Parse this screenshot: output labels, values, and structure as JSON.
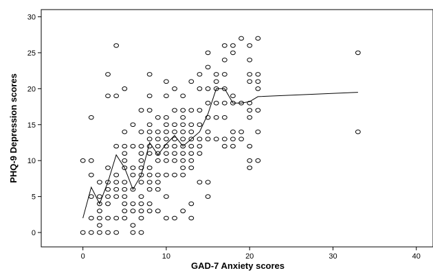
{
  "chart_data": {
    "type": "scatter",
    "title": "",
    "xlabel": "GAD-7 Anxiety scores",
    "ylabel": "PHQ-9 Depression scores",
    "xlim": [
      -5,
      42
    ],
    "ylim": [
      -2,
      31
    ],
    "x_ticks": [
      0,
      10,
      20,
      30,
      40
    ],
    "y_ticks": [
      0,
      5,
      10,
      15,
      20,
      25,
      30
    ],
    "x_tick_labels": [
      "0",
      "10",
      "20",
      "30",
      "40"
    ],
    "y_tick_labels": [
      "0",
      "5",
      "10",
      "15",
      "20",
      "25",
      "30"
    ],
    "grid": false,
    "legend": "none",
    "marker_style": "open-circle",
    "colors": {
      "marker": "#000000",
      "line": "#000000",
      "axes": "#000000",
      "background": "#ffffff"
    },
    "points": [
      [
        0,
        0
      ],
      [
        0,
        10
      ],
      [
        1,
        16
      ],
      [
        1,
        10
      ],
      [
        1,
        8
      ],
      [
        1,
        5
      ],
      [
        1,
        2
      ],
      [
        1,
        0
      ],
      [
        2,
        7
      ],
      [
        2,
        5
      ],
      [
        2,
        4
      ],
      [
        2,
        3
      ],
      [
        2,
        2
      ],
      [
        2,
        1
      ],
      [
        2,
        0
      ],
      [
        3,
        22
      ],
      [
        3,
        19
      ],
      [
        3,
        9
      ],
      [
        3,
        7
      ],
      [
        3,
        6
      ],
      [
        3,
        5
      ],
      [
        3,
        4
      ],
      [
        3,
        2
      ],
      [
        3,
        0
      ],
      [
        4,
        26
      ],
      [
        4,
        19
      ],
      [
        4,
        12
      ],
      [
        4,
        8
      ],
      [
        4,
        7
      ],
      [
        4,
        6
      ],
      [
        4,
        5
      ],
      [
        4,
        2
      ],
      [
        4,
        0
      ],
      [
        5,
        20
      ],
      [
        5,
        14
      ],
      [
        5,
        12
      ],
      [
        5,
        11
      ],
      [
        5,
        10
      ],
      [
        5,
        9
      ],
      [
        5,
        7
      ],
      [
        5,
        6
      ],
      [
        5,
        5
      ],
      [
        5,
        4
      ],
      [
        5,
        3
      ],
      [
        5,
        2
      ],
      [
        6,
        15
      ],
      [
        6,
        12
      ],
      [
        6,
        9
      ],
      [
        6,
        8
      ],
      [
        6,
        6
      ],
      [
        6,
        4
      ],
      [
        6,
        3
      ],
      [
        6,
        1
      ],
      [
        6,
        0
      ],
      [
        7,
        17
      ],
      [
        7,
        14
      ],
      [
        7,
        12
      ],
      [
        7,
        11
      ],
      [
        7,
        10
      ],
      [
        7,
        9
      ],
      [
        7,
        8
      ],
      [
        7,
        7
      ],
      [
        7,
        5
      ],
      [
        7,
        4
      ],
      [
        7,
        3
      ],
      [
        7,
        2
      ],
      [
        7,
        0
      ],
      [
        8,
        22
      ],
      [
        8,
        19
      ],
      [
        8,
        17
      ],
      [
        8,
        15
      ],
      [
        8,
        14
      ],
      [
        8,
        13
      ],
      [
        8,
        12
      ],
      [
        8,
        11
      ],
      [
        8,
        9
      ],
      [
        8,
        8
      ],
      [
        8,
        7
      ],
      [
        8,
        6
      ],
      [
        8,
        4
      ],
      [
        8,
        3
      ],
      [
        9,
        16
      ],
      [
        9,
        14
      ],
      [
        9,
        13
      ],
      [
        9,
        12
      ],
      [
        9,
        11
      ],
      [
        9,
        10
      ],
      [
        9,
        8
      ],
      [
        9,
        7
      ],
      [
        9,
        6
      ],
      [
        9,
        3
      ],
      [
        10,
        21
      ],
      [
        10,
        19
      ],
      [
        10,
        16
      ],
      [
        10,
        15
      ],
      [
        10,
        14
      ],
      [
        10,
        13
      ],
      [
        10,
        12
      ],
      [
        10,
        11
      ],
      [
        10,
        10
      ],
      [
        10,
        8
      ],
      [
        10,
        5
      ],
      [
        10,
        2
      ],
      [
        11,
        20
      ],
      [
        11,
        17
      ],
      [
        11,
        15
      ],
      [
        11,
        14
      ],
      [
        11,
        13
      ],
      [
        11,
        12
      ],
      [
        11,
        11
      ],
      [
        11,
        10
      ],
      [
        11,
        8
      ],
      [
        11,
        2
      ],
      [
        12,
        19
      ],
      [
        12,
        17
      ],
      [
        12,
        16
      ],
      [
        12,
        15
      ],
      [
        12,
        14
      ],
      [
        12,
        13
      ],
      [
        12,
        12
      ],
      [
        12,
        11
      ],
      [
        12,
        10
      ],
      [
        12,
        9
      ],
      [
        12,
        8
      ],
      [
        12,
        3
      ],
      [
        13,
        21
      ],
      [
        13,
        17
      ],
      [
        13,
        15
      ],
      [
        13,
        14
      ],
      [
        13,
        13
      ],
      [
        13,
        12
      ],
      [
        13,
        11
      ],
      [
        13,
        10
      ],
      [
        13,
        9
      ],
      [
        13,
        4
      ],
      [
        13,
        2
      ],
      [
        14,
        22
      ],
      [
        14,
        20
      ],
      [
        14,
        17
      ],
      [
        14,
        15
      ],
      [
        14,
        13
      ],
      [
        14,
        12
      ],
      [
        14,
        11
      ],
      [
        14,
        7
      ],
      [
        15,
        25
      ],
      [
        15,
        23
      ],
      [
        15,
        20
      ],
      [
        15,
        18
      ],
      [
        15,
        16
      ],
      [
        15,
        14
      ],
      [
        15,
        13
      ],
      [
        15,
        7
      ],
      [
        15,
        5
      ],
      [
        16,
        22
      ],
      [
        16,
        21
      ],
      [
        16,
        20
      ],
      [
        16,
        18
      ],
      [
        16,
        16
      ],
      [
        16,
        13
      ],
      [
        17,
        26
      ],
      [
        17,
        24
      ],
      [
        17,
        22
      ],
      [
        17,
        20
      ],
      [
        17,
        18
      ],
      [
        17,
        16
      ],
      [
        17,
        13
      ],
      [
        17,
        12
      ],
      [
        18,
        26
      ],
      [
        18,
        25
      ],
      [
        18,
        19
      ],
      [
        18,
        18
      ],
      [
        18,
        14
      ],
      [
        18,
        13
      ],
      [
        18,
        12
      ],
      [
        19,
        27
      ],
      [
        19,
        18
      ],
      [
        19,
        14
      ],
      [
        19,
        13
      ],
      [
        20,
        26
      ],
      [
        20,
        24
      ],
      [
        20,
        22
      ],
      [
        20,
        21
      ],
      [
        20,
        18
      ],
      [
        20,
        17
      ],
      [
        20,
        16
      ],
      [
        20,
        12
      ],
      [
        20,
        9
      ],
      [
        20,
        10
      ],
      [
        21,
        27
      ],
      [
        21,
        22
      ],
      [
        21,
        21
      ],
      [
        21,
        20
      ],
      [
        21,
        17
      ],
      [
        21,
        14
      ],
      [
        21,
        10
      ],
      [
        33,
        25
      ],
      [
        33,
        14
      ]
    ],
    "fit_line": {
      "x": [
        0,
        1,
        2,
        3,
        4,
        5,
        6,
        7,
        8,
        9,
        10,
        11,
        12,
        13,
        14,
        15,
        16,
        17,
        18,
        19,
        20,
        21,
        33
      ],
      "y": [
        2,
        6.3,
        4,
        7,
        10.8,
        9,
        6,
        8,
        12.5,
        10.8,
        12.3,
        13.5,
        12,
        13,
        14,
        16.5,
        20,
        20,
        18,
        18,
        18.2,
        18.9,
        19.5
      ]
    }
  }
}
